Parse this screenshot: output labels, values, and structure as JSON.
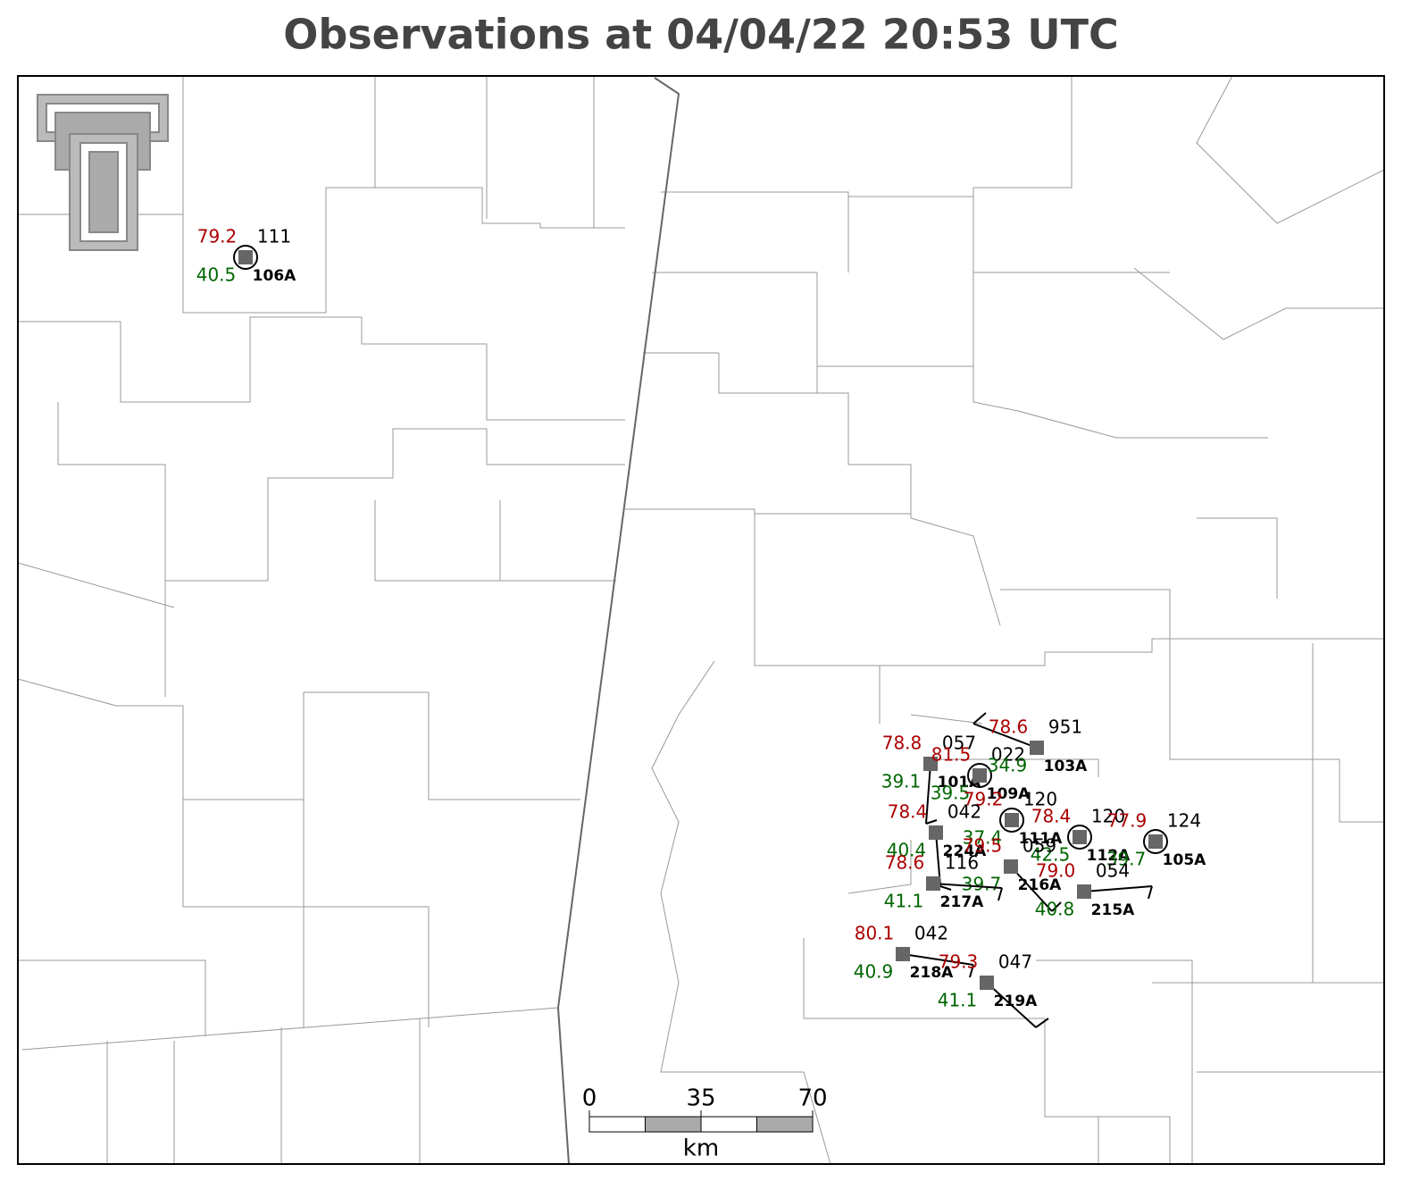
{
  "title": "Observations at 04/04/22 20:53 UTC",
  "stations": [
    {
      "id": "106A",
      "temp": "79.2",
      "dewpoint": "40.5",
      "pressure": "111"
    },
    {
      "id": "101A",
      "temp": "78.8",
      "dewpoint": "39.1",
      "pressure": "057"
    },
    {
      "id": "109A",
      "temp": "81.5",
      "dewpoint": "39.5",
      "pressure": "022"
    },
    {
      "id": "103A",
      "temp": "78.6",
      "dewpoint": "34.9",
      "pressure": "951"
    },
    {
      "id": "111A",
      "temp": "79.2",
      "dewpoint": "37.4",
      "pressure": "120"
    },
    {
      "id": "112A",
      "temp": "78.4",
      "dewpoint": "42.5",
      "pressure": "120"
    },
    {
      "id": "105A",
      "temp": "77.9",
      "dewpoint": "39.7",
      "pressure": "124"
    },
    {
      "id": "224A",
      "temp": "78.4",
      "dewpoint": "40.4",
      "pressure": "042"
    },
    {
      "id": "216A",
      "temp": "79.5",
      "dewpoint": "39.7",
      "pressure": "059"
    },
    {
      "id": "217A",
      "temp": "78.6",
      "dewpoint": "41.1",
      "pressure": "116"
    },
    {
      "id": "215A",
      "temp": "79.0",
      "dewpoint": "40.8",
      "pressure": "054"
    },
    {
      "id": "218A",
      "temp": "80.1",
      "dewpoint": "40.9",
      "pressure": "042"
    },
    {
      "id": "219A",
      "temp": "79.3",
      "dewpoint": "41.1",
      "pressure": "047"
    }
  ],
  "scale_bar": {
    "labels": [
      "0",
      "35",
      "70"
    ],
    "unit": "km"
  }
}
